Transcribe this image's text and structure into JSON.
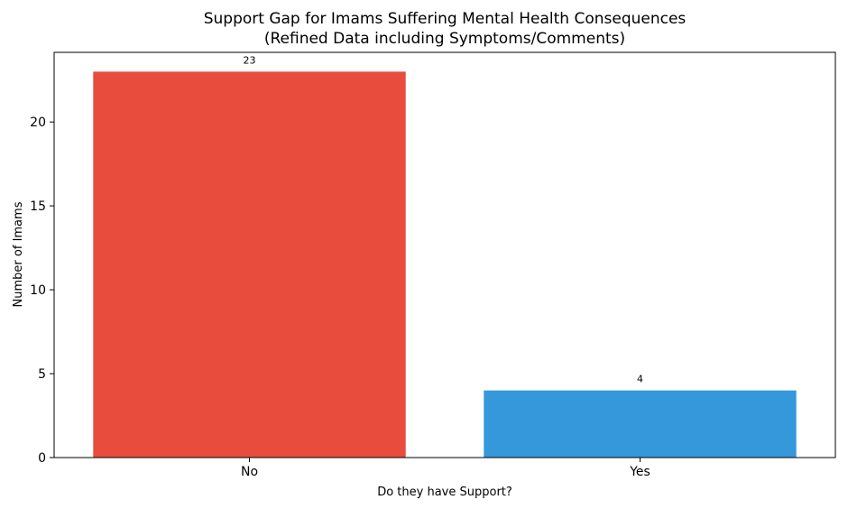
{
  "chart_data": {
    "type": "bar",
    "title": "Support Gap for Imams Suffering Mental Health Consequences",
    "subtitle": "(Refined Data including Symptoms/Comments)",
    "xlabel": "Do they have Support?",
    "ylabel": "Number of Imams",
    "categories": [
      "No",
      "Yes"
    ],
    "values": [
      23,
      4
    ],
    "data_labels": [
      "23",
      "4"
    ],
    "colors": [
      "#e74c3c",
      "#3498db"
    ],
    "ylim": [
      0,
      24.15
    ],
    "yticks": [
      0,
      5,
      10,
      15,
      20
    ],
    "ytick_labels": [
      "0",
      "5",
      "10",
      "15",
      "20"
    ],
    "grid": false,
    "legend": "none"
  }
}
